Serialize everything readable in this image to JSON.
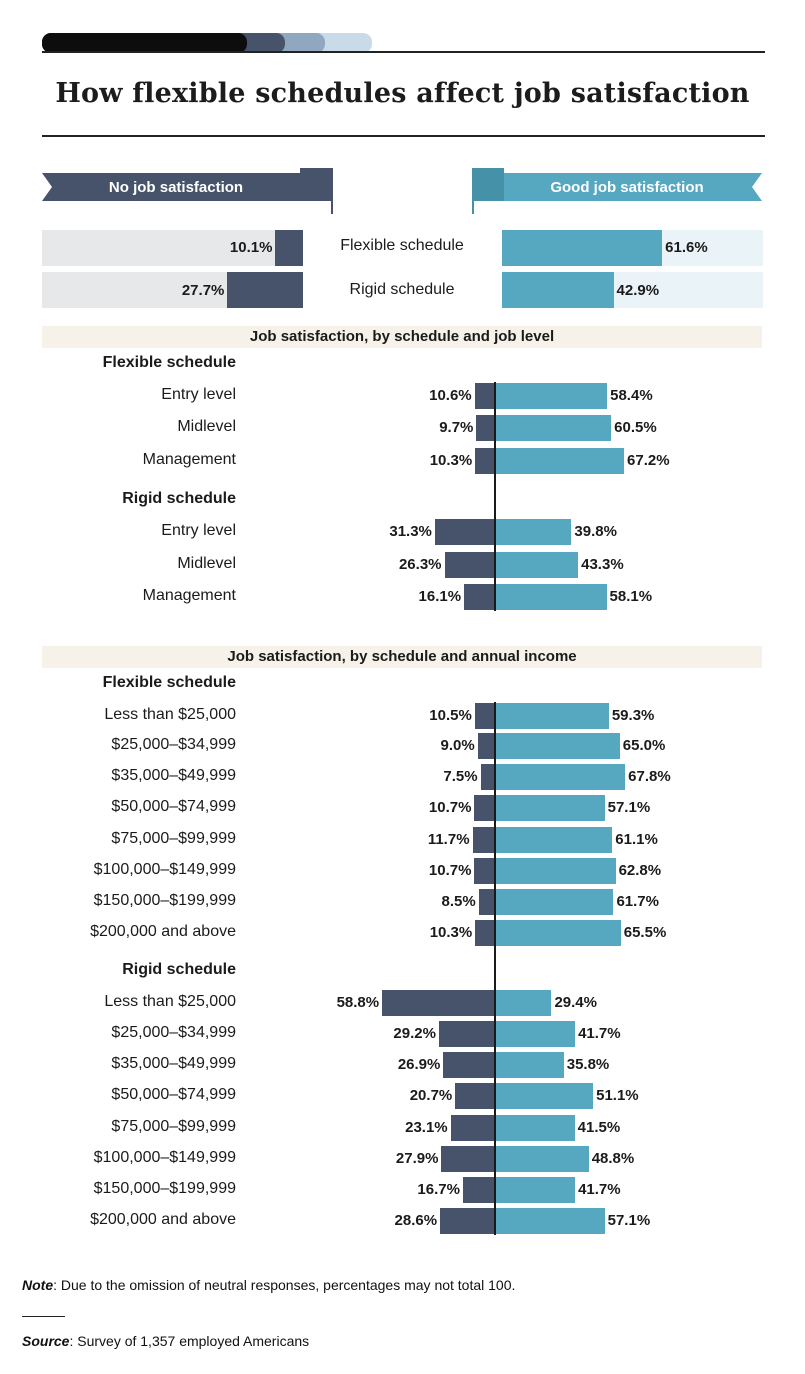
{
  "title": "How flexible schedules affect job satisfaction",
  "colors": {
    "no": "#46536b",
    "good": "#55a8c0",
    "no_bg": "#e7e8ea",
    "good_bg": "#eaf4f8",
    "band": "#f6f2ea"
  },
  "legend": {
    "no": "No job satisfaction",
    "good": "Good job satisfaction"
  },
  "summary": [
    {
      "label": "Flexible schedule",
      "no": 10.1,
      "no_text": "10.1%",
      "good": 61.6,
      "good_text": "61.6%"
    },
    {
      "label": "Rigid schedule",
      "no": 27.7,
      "no_text": "27.7%",
      "good": 42.9,
      "good_text": "42.9%"
    }
  ],
  "sections": [
    {
      "title": "Job satisfaction, by schedule and job level",
      "groups": [
        {
          "title": "Flexible schedule",
          "rows": [
            {
              "label": "Entry level",
              "no": 10.6,
              "no_text": "10.6%",
              "good": 58.4,
              "good_text": "58.4%"
            },
            {
              "label": "Midlevel",
              "no": 9.7,
              "no_text": "9.7%",
              "good": 60.5,
              "good_text": "60.5%"
            },
            {
              "label": "Management",
              "no": 10.3,
              "no_text": "10.3%",
              "good": 67.2,
              "good_text": "67.2%"
            }
          ]
        },
        {
          "title": "Rigid schedule",
          "rows": [
            {
              "label": "Entry level",
              "no": 31.3,
              "no_text": "31.3%",
              "good": 39.8,
              "good_text": "39.8%"
            },
            {
              "label": "Midlevel",
              "no": 26.3,
              "no_text": "26.3%",
              "good": 43.3,
              "good_text": "43.3%"
            },
            {
              "label": "Management",
              "no": 16.1,
              "no_text": "16.1%",
              "good": 58.1,
              "good_text": "58.1%"
            }
          ]
        }
      ]
    },
    {
      "title": "Job satisfaction, by schedule and annual income",
      "groups": [
        {
          "title": "Flexible schedule",
          "rows": [
            {
              "label": "Less than $25,000",
              "no": 10.5,
              "no_text": "10.5%",
              "good": 59.3,
              "good_text": "59.3%"
            },
            {
              "label": "$25,000–$34,999",
              "no": 9.0,
              "no_text": "9.0%",
              "good": 65.0,
              "good_text": "65.0%"
            },
            {
              "label": "$35,000–$49,999",
              "no": 7.5,
              "no_text": "7.5%",
              "good": 67.8,
              "good_text": "67.8%"
            },
            {
              "label": "$50,000–$74,999",
              "no": 10.7,
              "no_text": "10.7%",
              "good": 57.1,
              "good_text": "57.1%"
            },
            {
              "label": "$75,000–$99,999",
              "no": 11.7,
              "no_text": "11.7%",
              "good": 61.1,
              "good_text": "61.1%"
            },
            {
              "label": "$100,000–$149,999",
              "no": 10.7,
              "no_text": "10.7%",
              "good": 62.8,
              "good_text": "62.8%"
            },
            {
              "label": "$150,000–$199,999",
              "no": 8.5,
              "no_text": "8.5%",
              "good": 61.7,
              "good_text": "61.7%"
            },
            {
              "label": "$200,000 and above",
              "no": 10.3,
              "no_text": "10.3%",
              "good": 65.5,
              "good_text": "65.5%"
            }
          ]
        },
        {
          "title": "Rigid schedule",
          "rows": [
            {
              "label": "Less than $25,000",
              "no": 58.8,
              "no_text": "58.8%",
              "good": 29.4,
              "good_text": "29.4%"
            },
            {
              "label": "$25,000–$34,999",
              "no": 29.2,
              "no_text": "29.2%",
              "good": 41.7,
              "good_text": "41.7%"
            },
            {
              "label": "$35,000–$49,999",
              "no": 26.9,
              "no_text": "26.9%",
              "good": 35.8,
              "good_text": "35.8%"
            },
            {
              "label": "$50,000–$74,999",
              "no": 20.7,
              "no_text": "20.7%",
              "good": 51.1,
              "good_text": "51.1%"
            },
            {
              "label": "$75,000–$99,999",
              "no": 23.1,
              "no_text": "23.1%",
              "good": 41.5,
              "good_text": "41.5%"
            },
            {
              "label": "$100,000–$149,999",
              "no": 27.9,
              "no_text": "27.9%",
              "good": 48.8,
              "good_text": "48.8%"
            },
            {
              "label": "$150,000–$199,999",
              "no": 16.7,
              "no_text": "16.7%",
              "good": 41.7,
              "good_text": "41.7%"
            },
            {
              "label": "$200,000 and above",
              "no": 28.6,
              "no_text": "28.6%",
              "good": 57.1,
              "good_text": "57.1%"
            }
          ]
        }
      ]
    }
  ],
  "footer": {
    "note_label": "Note",
    "note_text": ": Due to the omission of neutral responses, percentages may not total 100.",
    "source_label": "Source",
    "source_text": ": Survey of 1,357 employed Americans"
  },
  "chart_data": {
    "type": "bar",
    "orientation": "horizontal-diverging",
    "title": "How flexible schedules affect job satisfaction",
    "series": [
      {
        "name": "No job satisfaction"
      },
      {
        "name": "Good job satisfaction"
      }
    ],
    "summary": {
      "categories": [
        "Flexible schedule",
        "Rigid schedule"
      ],
      "no": [
        10.1,
        27.7
      ],
      "good": [
        61.6,
        42.9
      ]
    },
    "by_job_level": {
      "title": "Job satisfaction, by schedule and job level",
      "categories": [
        "Entry level",
        "Midlevel",
        "Management"
      ],
      "flexible": {
        "no": [
          10.6,
          9.7,
          10.3
        ],
        "good": [
          58.4,
          60.5,
          67.2
        ]
      },
      "rigid": {
        "no": [
          31.3,
          26.3,
          16.1
        ],
        "good": [
          39.8,
          43.3,
          58.1
        ]
      }
    },
    "by_income": {
      "title": "Job satisfaction, by schedule and annual income",
      "categories": [
        "Less than $25,000",
        "$25,000–$34,999",
        "$35,000–$49,999",
        "$50,000–$74,999",
        "$75,000–$99,999",
        "$100,000–$149,999",
        "$150,000–$199,999",
        "$200,000 and above"
      ],
      "flexible": {
        "no": [
          10.5,
          9.0,
          7.5,
          10.7,
          11.7,
          10.7,
          8.5,
          10.3
        ],
        "good": [
          59.3,
          65.0,
          67.8,
          57.1,
          61.1,
          62.8,
          61.7,
          65.5
        ]
      },
      "rigid": {
        "no": [
          58.8,
          29.2,
          26.9,
          20.7,
          23.1,
          27.9,
          16.7,
          28.6
        ],
        "good": [
          29.4,
          41.7,
          35.8,
          51.1,
          41.5,
          48.8,
          41.7,
          57.1
        ]
      }
    }
  }
}
